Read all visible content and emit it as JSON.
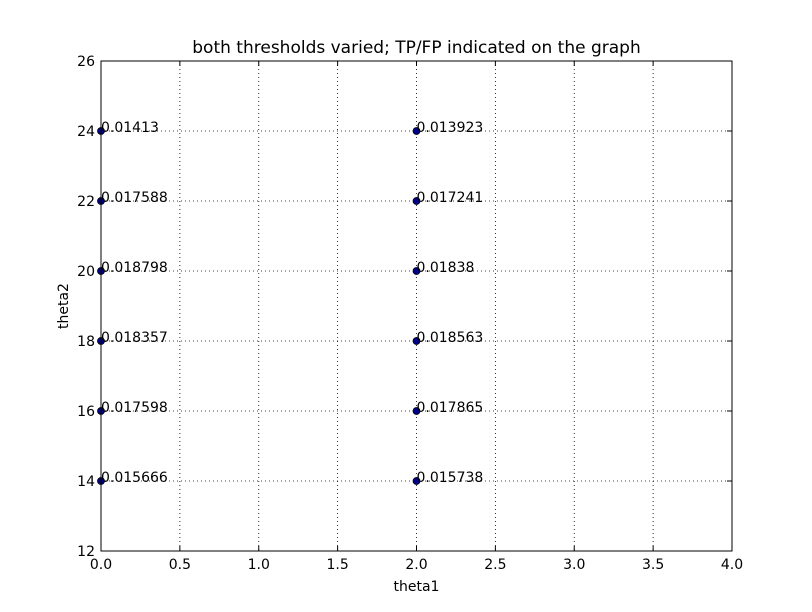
{
  "chart_data": {
    "type": "scatter",
    "title": "both thresholds varied; TP/FP indicated on the graph",
    "xlabel": "theta1",
    "ylabel": "theta2",
    "xlim": [
      0.0,
      4.0
    ],
    "ylim": [
      12,
      26
    ],
    "xticks": [
      "0.0",
      "0.5",
      "1.0",
      "1.5",
      "2.0",
      "2.5",
      "3.0",
      "3.5",
      "4.0"
    ],
    "yticks": [
      "12",
      "14",
      "16",
      "18",
      "20",
      "22",
      "24",
      "26"
    ],
    "grid": true,
    "marker_color": "#00008b",
    "points": [
      {
        "x": 0.0,
        "y": 24,
        "label": "0.01413"
      },
      {
        "x": 0.0,
        "y": 22,
        "label": "0.017588"
      },
      {
        "x": 0.0,
        "y": 20,
        "label": "0.018798"
      },
      {
        "x": 0.0,
        "y": 18,
        "label": "0.018357"
      },
      {
        "x": 0.0,
        "y": 16,
        "label": "0.017598"
      },
      {
        "x": 0.0,
        "y": 14,
        "label": "0.015666"
      },
      {
        "x": 2.0,
        "y": 24,
        "label": "0.013923"
      },
      {
        "x": 2.0,
        "y": 22,
        "label": "0.017241"
      },
      {
        "x": 2.0,
        "y": 20,
        "label": "0.01838"
      },
      {
        "x": 2.0,
        "y": 18,
        "label": "0.018563"
      },
      {
        "x": 2.0,
        "y": 16,
        "label": "0.017865"
      },
      {
        "x": 2.0,
        "y": 14,
        "label": "0.015738"
      }
    ]
  }
}
